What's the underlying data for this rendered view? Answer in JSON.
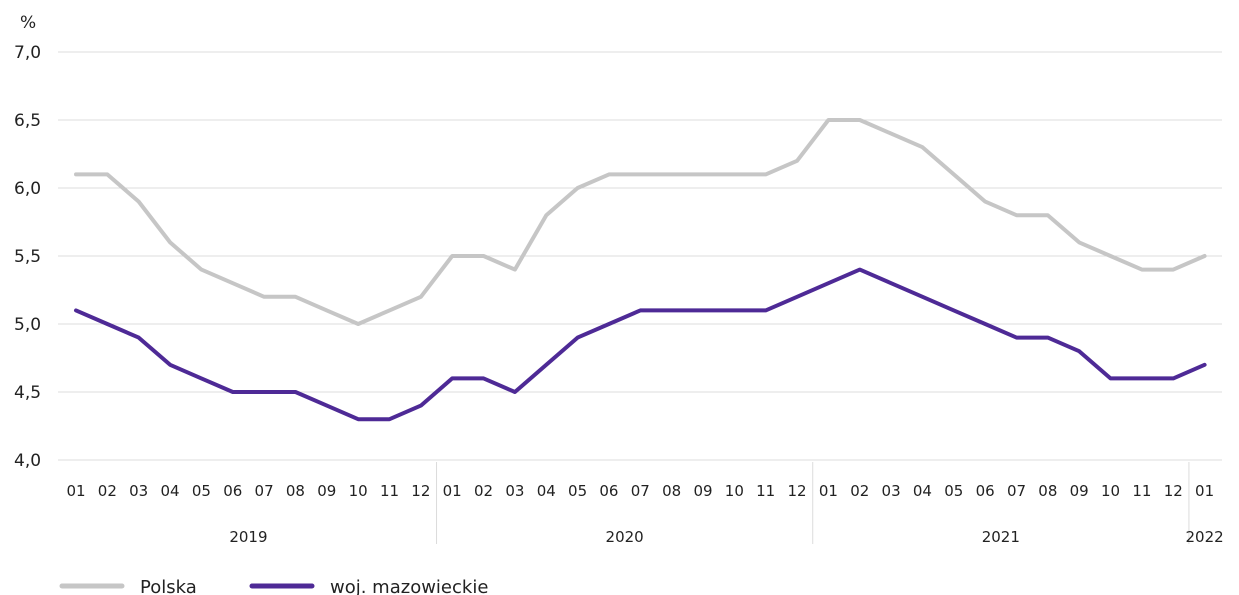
{
  "chart_data": {
    "type": "line",
    "ylabel": "%",
    "ylim": [
      4.0,
      7.0
    ],
    "yticks": [
      "4,0",
      "4,5",
      "5,0",
      "5,5",
      "6,0",
      "6,5",
      "7,0"
    ],
    "categories": [
      "01",
      "02",
      "03",
      "04",
      "05",
      "06",
      "07",
      "08",
      "09",
      "10",
      "11",
      "12",
      "01",
      "02",
      "03",
      "04",
      "05",
      "06",
      "07",
      "08",
      "09",
      "10",
      "11",
      "12",
      "01",
      "02",
      "03",
      "04",
      "05",
      "06",
      "07",
      "08",
      "09",
      "10",
      "11",
      "12",
      "01"
    ],
    "years": [
      {
        "label": "2019",
        "start": 0,
        "end": 11
      },
      {
        "label": "2020",
        "start": 12,
        "end": 23
      },
      {
        "label": "2021",
        "start": 24,
        "end": 35
      },
      {
        "label": "2022",
        "start": 36,
        "end": 36
      }
    ],
    "series": [
      {
        "name": "Polska",
        "color": "#c6c6c6",
        "values": [
          6.1,
          6.1,
          5.9,
          5.6,
          5.4,
          5.3,
          5.2,
          5.2,
          5.1,
          5.0,
          5.1,
          5.2,
          5.5,
          5.5,
          5.4,
          5.8,
          6.0,
          6.1,
          6.1,
          6.1,
          6.1,
          6.1,
          6.1,
          6.2,
          6.5,
          6.5,
          6.4,
          6.3,
          6.1,
          5.9,
          5.8,
          5.8,
          5.6,
          5.5,
          5.4,
          5.4,
          5.5
        ]
      },
      {
        "name": "woj. mazowieckie",
        "color": "#4e2a96",
        "values": [
          5.1,
          5.0,
          4.9,
          4.7,
          4.6,
          4.5,
          4.5,
          4.5,
          4.4,
          4.3,
          4.3,
          4.4,
          4.6,
          4.6,
          4.5,
          4.7,
          4.9,
          5.0,
          5.1,
          5.1,
          5.1,
          5.1,
          5.1,
          5.2,
          5.3,
          5.4,
          5.3,
          5.2,
          5.1,
          5.0,
          4.9,
          4.9,
          4.8,
          4.6,
          4.6,
          4.6,
          4.7
        ]
      }
    ],
    "grid": true,
    "legend_position": "bottom-left"
  }
}
